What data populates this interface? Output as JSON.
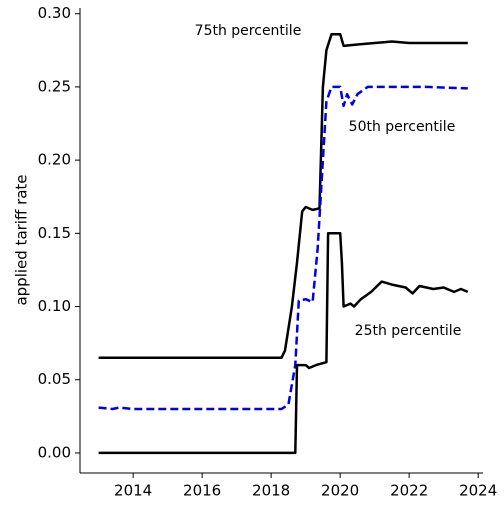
{
  "chart_data": {
    "type": "line",
    "ylabel": "applied tariff rate",
    "xlim": [
      2012.46,
      2024.14
    ],
    "ylim": [
      -0.0137,
      0.3039
    ],
    "xticks": [
      2014,
      2016,
      2018,
      2020,
      2022,
      2024
    ],
    "yticks": [
      {
        "value": 0,
        "label": "0.00"
      },
      {
        "value": 0.05,
        "label": "0.05"
      },
      {
        "value": 0.1,
        "label": "0.10"
      },
      {
        "value": 0.15,
        "label": "0.15"
      },
      {
        "value": 0.2,
        "label": "0.20"
      },
      {
        "value": 0.25,
        "label": "0.25"
      },
      {
        "value": 0.3,
        "label": "0.30"
      }
    ],
    "series": [
      {
        "name": "75th percentile",
        "color": "#000000",
        "dashed": false,
        "x": [
          2013.0,
          2018.3,
          2018.4,
          2018.6,
          2018.75,
          2018.9,
          2019.0,
          2019.2,
          2019.4,
          2019.5,
          2019.6,
          2019.75,
          2020.0,
          2020.1,
          2020.5,
          2021.0,
          2021.5,
          2022.0,
          2022.5,
          2023.0,
          2023.7
        ],
        "values": [
          0.065,
          0.065,
          0.07,
          0.1,
          0.13,
          0.165,
          0.168,
          0.166,
          0.167,
          0.25,
          0.275,
          0.286,
          0.286,
          0.278,
          0.279,
          0.28,
          0.281,
          0.28,
          0.28,
          0.28,
          0.28
        ]
      },
      {
        "name": "50th percentile",
        "color": "#0000ee",
        "dashed": true,
        "x": [
          2013.0,
          2013.4,
          2013.6,
          2014.0,
          2018.3,
          2018.5,
          2018.7,
          2018.8,
          2019.0,
          2019.2,
          2019.35,
          2019.5,
          2019.6,
          2019.75,
          2020.0,
          2020.1,
          2020.2,
          2020.35,
          2020.5,
          2020.8,
          2021.5,
          2022.5,
          2023.7
        ],
        "values": [
          0.031,
          0.03,
          0.031,
          0.03,
          0.03,
          0.033,
          0.06,
          0.104,
          0.105,
          0.103,
          0.14,
          0.2,
          0.24,
          0.25,
          0.25,
          0.237,
          0.245,
          0.238,
          0.245,
          0.25,
          0.25,
          0.25,
          0.249
        ]
      },
      {
        "name": "25th percentile",
        "color": "#000000",
        "dashed": false,
        "x": [
          2013.0,
          2018.7,
          2018.75,
          2019.0,
          2019.1,
          2019.3,
          2019.6,
          2019.65,
          2020.0,
          2020.05,
          2020.1,
          2020.3,
          2020.4,
          2020.6,
          2020.9,
          2021.2,
          2021.5,
          2021.9,
          2022.1,
          2022.3,
          2022.7,
          2023.0,
          2023.3,
          2023.5,
          2023.7
        ],
        "values": [
          0,
          0,
          0.06,
          0.06,
          0.058,
          0.06,
          0.062,
          0.15,
          0.15,
          0.13,
          0.1,
          0.102,
          0.1,
          0.105,
          0.11,
          0.117,
          0.115,
          0.113,
          0.109,
          0.114,
          0.112,
          0.113,
          0.11,
          0.112,
          0.11
        ]
      }
    ]
  }
}
